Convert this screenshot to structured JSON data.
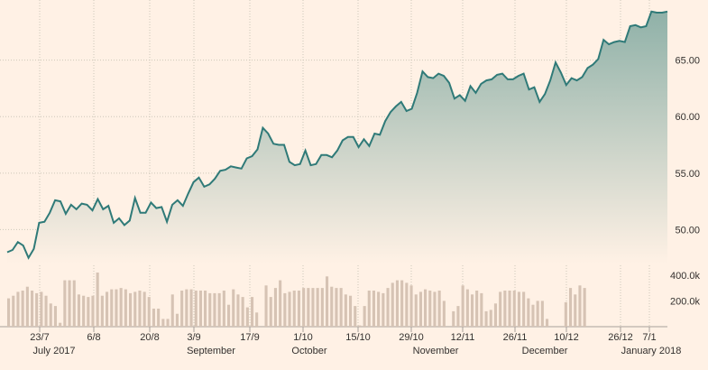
{
  "chart_data": [
    {
      "type": "area",
      "title": "",
      "xlabel": "",
      "ylabel": "",
      "ylim": [
        47.0,
        70.0
      ],
      "y_ticks": [
        50,
        55,
        60,
        65
      ],
      "y_tick_labels": [
        "50.00",
        "55.00",
        "60.00",
        "65.00"
      ],
      "grid": true,
      "axis_side": "right",
      "line_color": "#2f7a78",
      "fill_top_color": "#8fb1a8",
      "fill_bottom_color": "#fff1e5",
      "x_tick_labels": [
        "23/7",
        "6/8",
        "20/8",
        "3/9",
        "17/9",
        "1/10",
        "15/10",
        "29/10",
        "12/11",
        "26/11",
        "10/12",
        "26/12",
        "7/1"
      ],
      "month_labels": [
        "July 2017",
        "September",
        "October",
        "November",
        "December",
        "January 2018"
      ],
      "values": [
        48.0,
        48.2,
        48.9,
        48.6,
        47.5,
        48.3,
        50.6,
        50.7,
        51.5,
        52.6,
        52.5,
        51.4,
        52.2,
        51.8,
        52.3,
        52.2,
        51.7,
        52.7,
        51.8,
        52.1,
        50.6,
        51.0,
        50.4,
        50.8,
        52.8,
        51.5,
        51.5,
        52.4,
        51.9,
        52.0,
        50.7,
        52.2,
        52.6,
        52.1,
        53.2,
        54.2,
        54.6,
        53.8,
        54.0,
        54.5,
        55.2,
        55.3,
        55.6,
        55.5,
        55.4,
        56.3,
        56.5,
        57.1,
        59.0,
        58.5,
        57.6,
        57.5,
        57.5,
        56.0,
        55.7,
        55.8,
        57.0,
        55.7,
        55.8,
        56.6,
        56.6,
        56.4,
        57.0,
        57.9,
        58.2,
        58.2,
        57.3,
        58.0,
        57.4,
        58.5,
        58.4,
        59.6,
        60.4,
        60.9,
        61.3,
        60.5,
        60.7,
        62.1,
        64.0,
        63.5,
        63.4,
        63.8,
        63.6,
        63.0,
        61.6,
        61.9,
        61.4,
        62.7,
        62.1,
        62.9,
        63.2,
        63.3,
        63.7,
        63.8,
        63.3,
        63.3,
        63.6,
        63.8,
        62.4,
        62.6,
        61.3,
        62.0,
        63.2,
        64.8,
        63.9,
        62.8,
        63.4,
        63.2,
        63.5,
        64.3,
        64.6,
        65.1,
        66.8,
        66.4,
        66.6,
        66.7,
        66.6,
        68.0,
        68.1,
        67.9,
        68.0,
        69.3,
        69.2,
        69.2,
        69.3
      ]
    },
    {
      "type": "bar",
      "title": "",
      "xlabel": "",
      "ylabel": "",
      "ylim": [
        0,
        560
      ],
      "y_ticks": [
        200,
        400
      ],
      "y_tick_labels": [
        "200.0k",
        "400.0k"
      ],
      "bar_color": "#d6c3b4",
      "values": [
        220,
        240,
        270,
        280,
        310,
        280,
        260,
        270,
        240,
        180,
        160,
        30,
        360,
        360,
        360,
        250,
        240,
        230,
        240,
        420,
        240,
        270,
        290,
        290,
        300,
        290,
        260,
        270,
        280,
        270,
        230,
        140,
        140,
        60,
        60,
        250,
        100,
        280,
        290,
        290,
        280,
        280,
        280,
        260,
        260,
        260,
        280,
        170,
        290,
        250,
        230,
        150,
        230,
        110,
        0,
        320,
        230,
        300,
        360,
        260,
        270,
        280,
        280,
        300,
        300,
        300,
        300,
        300,
        390,
        310,
        300,
        300,
        250,
        240,
        160,
        10,
        160,
        280,
        280,
        270,
        260,
        300,
        340,
        360,
        360,
        340,
        320,
        250,
        270,
        290,
        280,
        270,
        280,
        200,
        0,
        120,
        160,
        320,
        290,
        250,
        280,
        260,
        120,
        130,
        180,
        270,
        280,
        280,
        280,
        270,
        270,
        220,
        170,
        200,
        200,
        60,
        0,
        0,
        0,
        190,
        300,
        250,
        320,
        300,
        0,
        0,
        0,
        0,
        0,
        0,
        0,
        0,
        0,
        0,
        0,
        0,
        0,
        0,
        0,
        0,
        0,
        0,
        0,
        0,
        0,
        0,
        0,
        0,
        0,
        0,
        0,
        0,
        0,
        0,
        0,
        0,
        0,
        0,
        0,
        0,
        0,
        0,
        0,
        0,
        0,
        0,
        0,
        0,
        0,
        0,
        0,
        0,
        0,
        0,
        0,
        0,
        0,
        0,
        0,
        0,
        0,
        0,
        0,
        0,
        0,
        0,
        0,
        0,
        0,
        0,
        0,
        0,
        0,
        0,
        0,
        0,
        0,
        0,
        0,
        0,
        0,
        0,
        0,
        0,
        0,
        0,
        0,
        0,
        0,
        0,
        0,
        0,
        0,
        0,
        0,
        0,
        0,
        0,
        0,
        0,
        0,
        0
      ]
    }
  ]
}
